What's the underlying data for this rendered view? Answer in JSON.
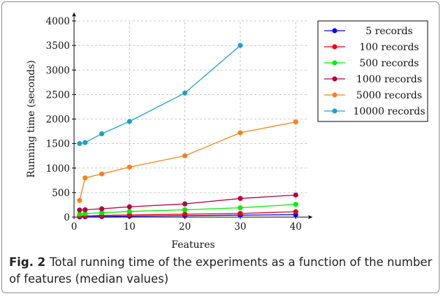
{
  "caption": {
    "label": "Fig. 2",
    "text": "Total running time of the experiments as a function of the number of features (median values)"
  },
  "chart_data": {
    "type": "line",
    "title": "",
    "xlabel": "Features",
    "ylabel": "Running time (seconds)",
    "xlim": [
      0,
      43
    ],
    "ylim": [
      0,
      4000
    ],
    "xticks": [
      0,
      10,
      20,
      30,
      40
    ],
    "yticks": [
      0,
      500,
      1000,
      1500,
      2000,
      2500,
      3000,
      3500,
      4000
    ],
    "grid": true,
    "legend_position": "top-right",
    "series": [
      {
        "name": "5 records",
        "color": "#0000ff",
        "x": [
          1,
          2,
          5,
          10,
          20,
          30,
          40
        ],
        "y": [
          5,
          8,
          12,
          20,
          30,
          40,
          50
        ]
      },
      {
        "name": "100 records",
        "color": "#ee0000",
        "x": [
          1,
          2,
          5,
          10,
          20,
          30,
          40
        ],
        "y": [
          20,
          25,
          35,
          45,
          60,
          75,
          110
        ]
      },
      {
        "name": "500 records",
        "color": "#00ee00",
        "x": [
          1,
          2,
          5,
          10,
          20,
          30,
          40
        ],
        "y": [
          60,
          70,
          90,
          115,
          150,
          190,
          260
        ]
      },
      {
        "name": "1000 records",
        "color": "#b3003b",
        "x": [
          1,
          2,
          5,
          10,
          20,
          30,
          40
        ],
        "y": [
          145,
          150,
          170,
          210,
          270,
          380,
          450
        ]
      },
      {
        "name": "5000 records",
        "color": "#f58216",
        "x": [
          1,
          2,
          5,
          10,
          20,
          30,
          40
        ],
        "y": [
          340,
          800,
          880,
          1020,
          1250,
          1720,
          1940
        ]
      },
      {
        "name": "10000 records",
        "color": "#1aa0d0",
        "x": [
          1,
          2,
          5,
          10,
          20,
          30
        ],
        "y": [
          1500,
          1520,
          1700,
          1950,
          2530,
          3500
        ]
      }
    ]
  }
}
